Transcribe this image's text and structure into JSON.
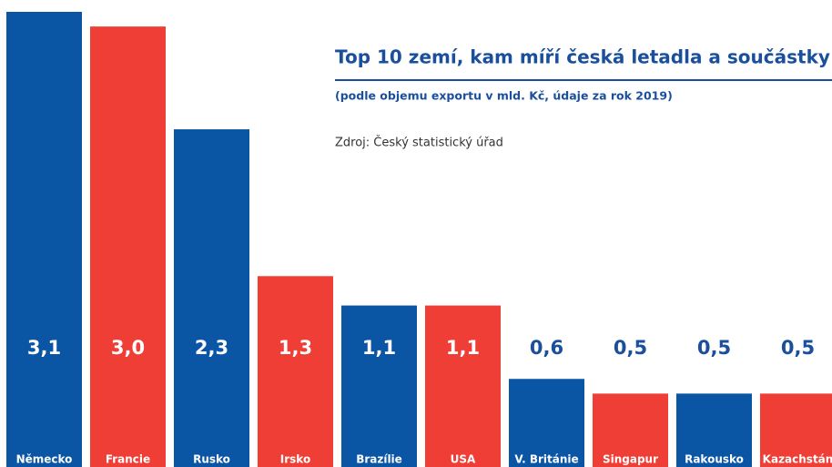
{
  "chart_data": {
    "type": "bar",
    "title": "Top 10 zemí, kam míří česká letadla a součástky",
    "subtitle": "(podle objemu exportu v mld. Kč, údaje za rok 2019)",
    "source": "Zdroj: Český statistický úřad",
    "categories": [
      "Německo",
      "Francie",
      "Rusko",
      "Irsko",
      "Brazílie",
      "USA",
      "V. Británie",
      "Singapur",
      "Rakousko",
      "Kazachstán"
    ],
    "values": [
      3.1,
      3.0,
      2.3,
      1.3,
      1.1,
      1.1,
      0.6,
      0.5,
      0.5,
      0.5
    ],
    "value_labels": [
      "3,1",
      "3,0",
      "2,3",
      "1,3",
      "1,1",
      "1,1",
      "0,6",
      "0,5",
      "0,5",
      "0,5"
    ],
    "colors": [
      "#0a56a5",
      "#ef3e36",
      "#0a56a5",
      "#ef3e36",
      "#0a56a5",
      "#ef3e36",
      "#0a56a5",
      "#ef3e36",
      "#0a56a5",
      "#ef3e36"
    ]
  }
}
